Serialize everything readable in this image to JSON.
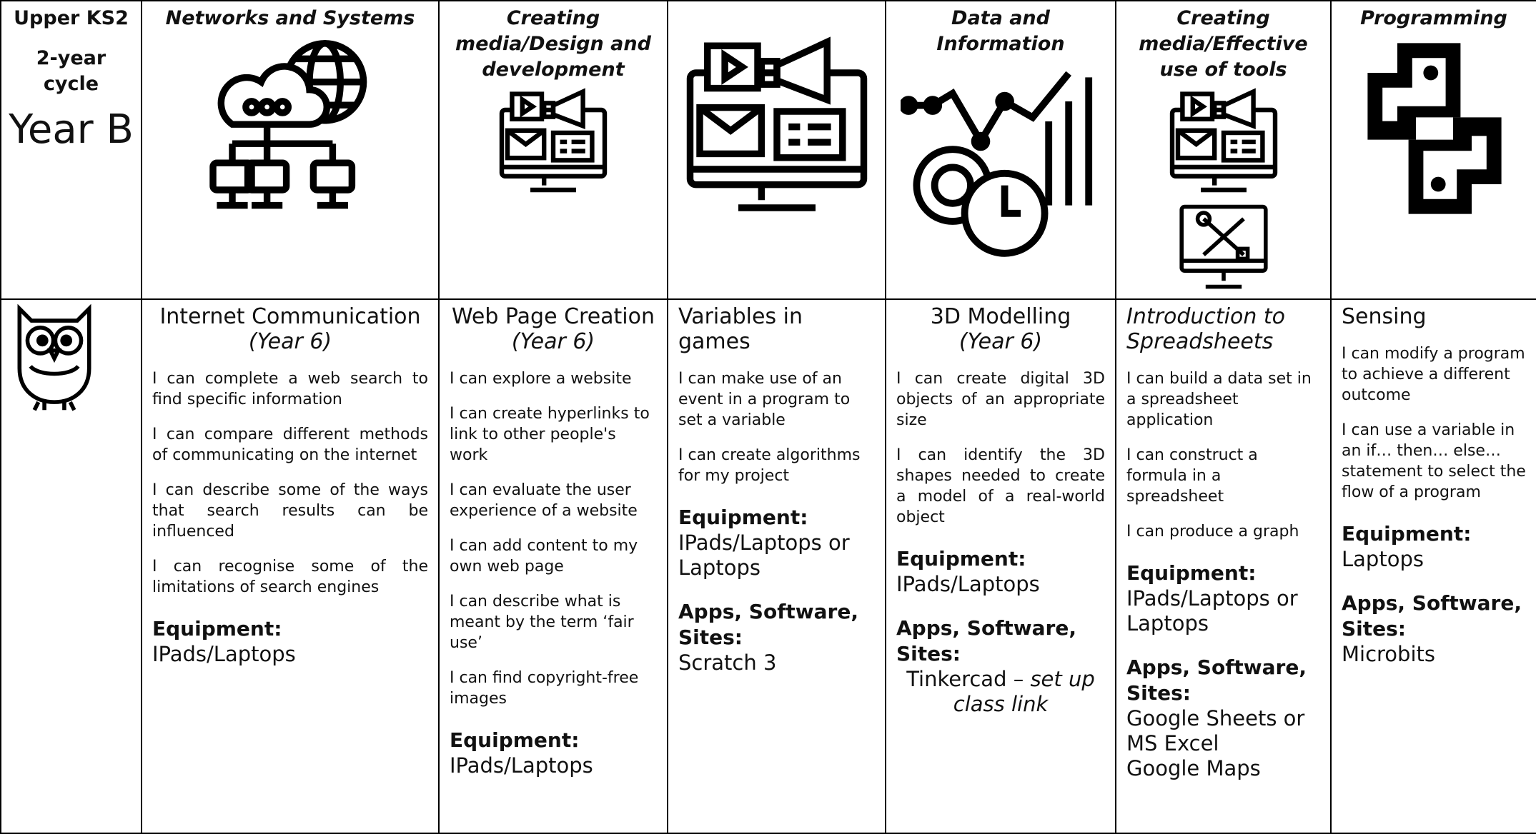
{
  "corner": {
    "stage": "Upper KS2",
    "cycle": "2-year cycle",
    "year": "Year B"
  },
  "columns": [
    {
      "heading": "Networks and Systems",
      "unit": "Internet Communication",
      "unit_year": "(Year 6)",
      "align": "justify",
      "statements": [
        "I can complete a web search to find specific information",
        "I can compare different methods of communicating on the internet",
        "I can describe some of the ways that search results can be influenced",
        "I can recognise some of the limitations of search engines"
      ],
      "equipment_label": "Equipment:",
      "equipment": [
        "IPads/Laptops"
      ]
    },
    {
      "heading": "Creating media/Design and development",
      "unit": "Web Page Creation",
      "unit_year": "(Year 6)",
      "align": "left",
      "statements": [
        "I can explore a website",
        "I can create hyperlinks to link to other people's work",
        "I can evaluate the user experience of a website",
        "I can add content to my own web page",
        "I can describe what is meant by the term ‘fair use’",
        "I can find copyright-free images"
      ],
      "equipment_label": "Equipment:",
      "equipment": [
        "IPads/Laptops"
      ]
    },
    {
      "unit": "Variables in games",
      "align": "left",
      "statements": [
        "I can make use of an event in a program to set a variable",
        "I can create algorithms for my project"
      ],
      "equipment_label": "Equipment:",
      "equipment": [
        "IPads/Laptops or Laptops"
      ],
      "software_label": "Apps, Software, Sites:",
      "software": [
        "Scratch 3"
      ]
    },
    {
      "heading": "Data and Information",
      "unit": "3D Modelling",
      "unit_year": "(Year 6)",
      "align": "justify",
      "statements": [
        "I can create digital 3D objects of an appropriate size",
        "I can identify the 3D shapes needed to create a model of a real-world object"
      ],
      "equipment_label": "Equipment:",
      "equipment": [
        "IPads/Laptops"
      ],
      "software_label": "Apps, Software, Sites:",
      "software": [
        "Tinkercad – "
      ],
      "software_note": "set up class link"
    },
    {
      "heading": "Creating media/Effective use of tools",
      "unit": "Introduction to Spreadsheets",
      "unit_italic": true,
      "align": "left",
      "statements": [
        "I can build a data set in a spreadsheet application",
        "I can construct a formula in a spreadsheet",
        "I can produce a graph"
      ],
      "equipment_label": "Equipment:",
      "equipment": [
        "IPads/Laptops or Laptops"
      ],
      "software_label": "Apps, Software, Sites:",
      "software": [
        "Google Sheets or MS Excel",
        "Google Maps"
      ]
    },
    {
      "heading": "Programming",
      "unit": "Sensing",
      "align": "left",
      "statements": [
        "I can modify a program to achieve a different outcome",
        "I can use a variable in an if… then… else… statement to select the flow of a program"
      ],
      "equipment_label": "Equipment:",
      "equipment": [
        "Laptops"
      ],
      "software_label": "Apps, Software, Sites:",
      "software": [
        "Microbits"
      ]
    }
  ]
}
